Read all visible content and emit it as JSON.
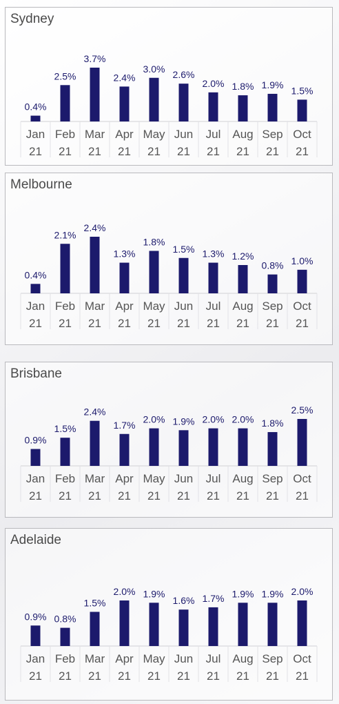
{
  "chart_data": [
    {
      "type": "bar",
      "title": "Sydney",
      "categories": [
        "Jan\n21",
        "Feb\n21",
        "Mar\n21",
        "Apr\n21",
        "May\n21",
        "Jun\n21",
        "Jul\n21",
        "Aug\n21",
        "Sep\n21",
        "Oct\n21"
      ],
      "category_lines": [
        [
          "Jan",
          "21"
        ],
        [
          "Feb",
          "21"
        ],
        [
          "Mar",
          "21"
        ],
        [
          "Apr",
          "21"
        ],
        [
          "May",
          "21"
        ],
        [
          "Jun",
          "21"
        ],
        [
          "Jul",
          "21"
        ],
        [
          "Aug",
          "21"
        ],
        [
          "Sep",
          "21"
        ],
        [
          "Oct",
          "21"
        ]
      ],
      "values": [
        0.4,
        2.5,
        3.7,
        2.4,
        3.0,
        2.6,
        2.0,
        1.8,
        1.9,
        1.5
      ],
      "labels": [
        "0.4%",
        "2.5%",
        "3.7%",
        "2.4%",
        "3.0%",
        "2.6%",
        "2.0%",
        "1.8%",
        "1.9%",
        "1.5%"
      ],
      "ylim": [
        0,
        3.7
      ],
      "grid": false,
      "color": "#1c1a6c"
    },
    {
      "type": "bar",
      "title": "Melbourne",
      "category_lines": [
        [
          "Jan",
          "21"
        ],
        [
          "Feb",
          "21"
        ],
        [
          "Mar",
          "21"
        ],
        [
          "Apr",
          "21"
        ],
        [
          "May",
          "21"
        ],
        [
          "Jun",
          "21"
        ],
        [
          "Jul",
          "21"
        ],
        [
          "Aug",
          "21"
        ],
        [
          "Sep",
          "21"
        ],
        [
          "Oct",
          "21"
        ]
      ],
      "values": [
        0.4,
        2.1,
        2.4,
        1.3,
        1.8,
        1.5,
        1.3,
        1.2,
        0.8,
        1.0
      ],
      "labels": [
        "0.4%",
        "2.1%",
        "2.4%",
        "1.3%",
        "1.8%",
        "1.5%",
        "1.3%",
        "1.2%",
        "0.8%",
        "1.0%"
      ],
      "ylim": [
        0,
        2.4
      ],
      "grid": false,
      "color": "#1c1a6c"
    },
    {
      "type": "bar",
      "title": "Brisbane",
      "category_lines": [
        [
          "Jan",
          "21"
        ],
        [
          "Feb",
          "21"
        ],
        [
          "Mar",
          "21"
        ],
        [
          "Apr",
          "21"
        ],
        [
          "May",
          "21"
        ],
        [
          "Jun",
          "21"
        ],
        [
          "Jul",
          "21"
        ],
        [
          "Aug",
          "21"
        ],
        [
          "Sep",
          "21"
        ],
        [
          "Oct",
          "21"
        ]
      ],
      "values": [
        0.9,
        1.5,
        2.4,
        1.7,
        2.0,
        1.9,
        2.0,
        2.0,
        1.8,
        2.5
      ],
      "labels": [
        "0.9%",
        "1.5%",
        "2.4%",
        "1.7%",
        "2.0%",
        "1.9%",
        "2.0%",
        "2.0%",
        "1.8%",
        "2.5%"
      ],
      "ylim": [
        0,
        2.5
      ],
      "grid": false,
      "color": "#1c1a6c"
    },
    {
      "type": "bar",
      "title": "Adelaide",
      "category_lines": [
        [
          "Jan",
          "21"
        ],
        [
          "Feb",
          "21"
        ],
        [
          "Mar",
          "21"
        ],
        [
          "Apr",
          "21"
        ],
        [
          "May",
          "21"
        ],
        [
          "Jun",
          "21"
        ],
        [
          "Jul",
          "21"
        ],
        [
          "Aug",
          "21"
        ],
        [
          "Sep",
          "21"
        ],
        [
          "Oct",
          "21"
        ]
      ],
      "values": [
        0.9,
        0.8,
        1.5,
        2.0,
        1.9,
        1.6,
        1.7,
        1.9,
        1.9,
        2.0
      ],
      "labels": [
        "0.9%",
        "0.8%",
        "1.5%",
        "2.0%",
        "1.9%",
        "1.6%",
        "1.7%",
        "1.9%",
        "1.9%",
        "2.0%"
      ],
      "ylim": [
        0,
        2.0
      ],
      "grid": false,
      "color": "#1c1a6c"
    }
  ]
}
